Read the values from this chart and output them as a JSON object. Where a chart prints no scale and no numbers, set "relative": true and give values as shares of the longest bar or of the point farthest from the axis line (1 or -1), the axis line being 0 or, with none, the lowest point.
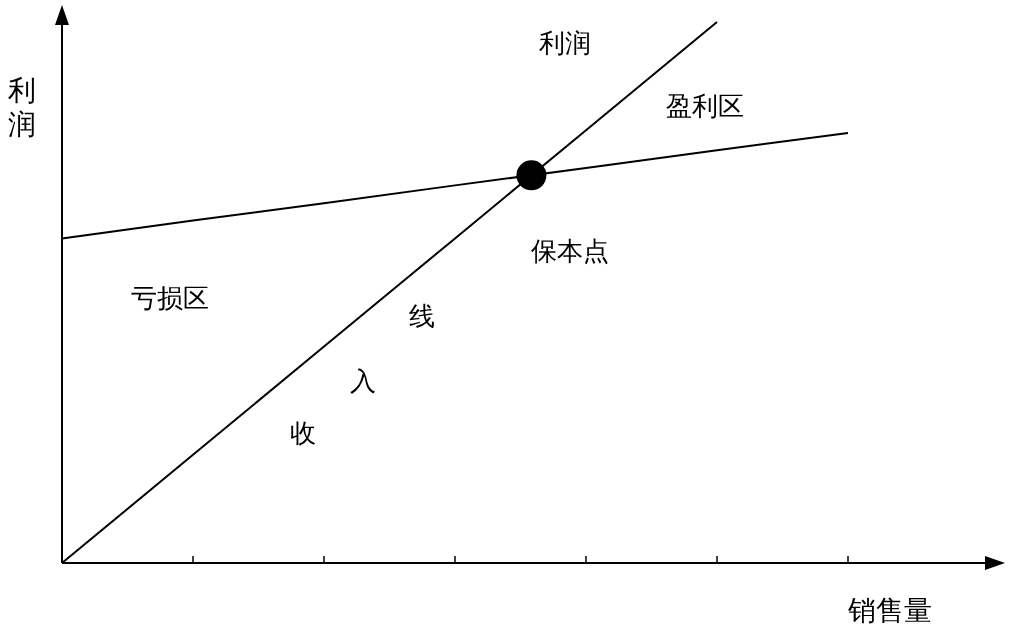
{
  "chart_data": {
    "type": "line",
    "relative": true,
    "xlabel": "销售量",
    "ylabel": "利润",
    "categories": [
      null,
      null,
      null,
      null,
      null,
      null,
      null
    ],
    "series": [
      {
        "color": "#000000",
        "values": [
          0,
          0.2,
          0.4,
          0.6,
          0.8,
          1,
          null
        ]
      },
      {
        "color": "#000000",
        "values": [
          0.6,
          0.633,
          0.665,
          0.698,
          0.73,
          0.763,
          0.795
        ]
      }
    ],
    "annotations": [
      "利润",
      "盈利区",
      "保本点",
      "亏损区",
      "线",
      "入",
      "收"
    ],
    "marker": "none",
    "line_style": "solid"
  }
}
